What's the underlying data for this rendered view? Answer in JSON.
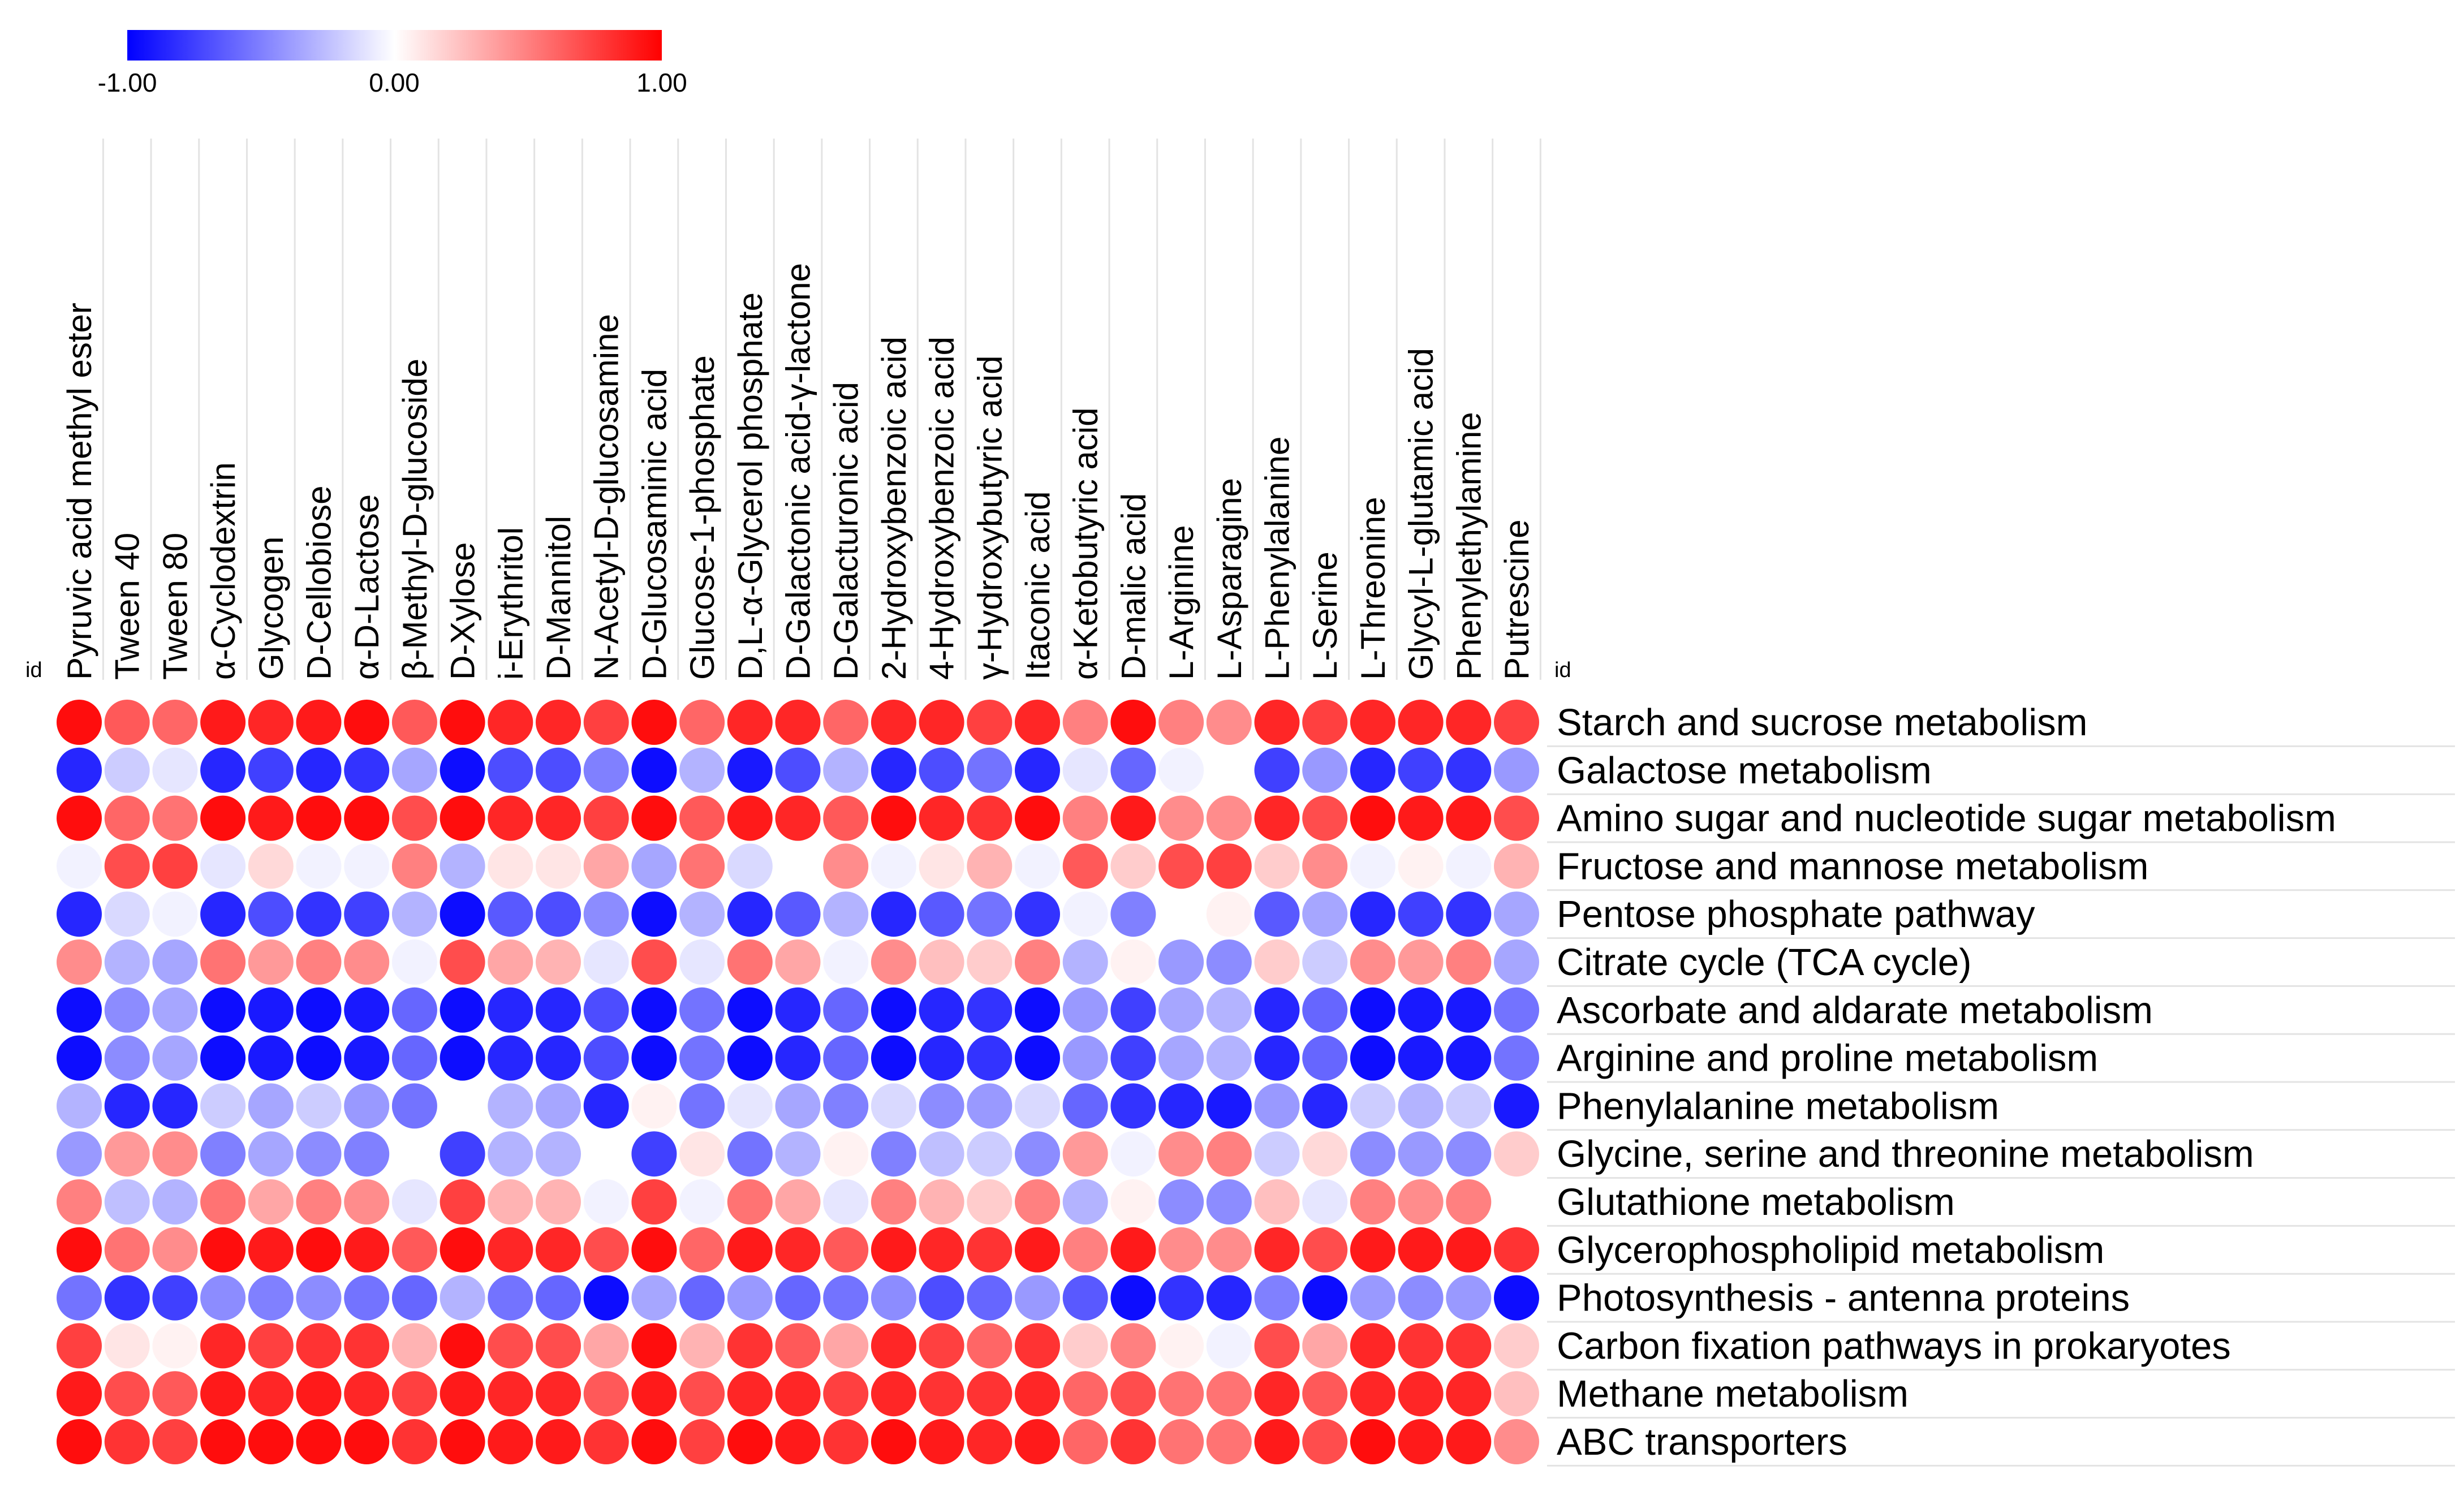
{
  "chart_data": {
    "type": "heatmap",
    "title": "",
    "xlabel": "id",
    "ylabel": "id",
    "colorbar": {
      "min": -1.0,
      "max": 1.0,
      "ticks": [
        "-1.00",
        "0.00",
        "1.00"
      ],
      "colors": {
        "low": "#0000ff",
        "mid": "#ffffff",
        "high": "#ff0000"
      }
    },
    "columns": [
      "Pyruvic acid methyl ester",
      "Tween 40",
      "Tween 80",
      "α-Cyclodextrin",
      "Glycogen",
      "D-Cellobiose",
      "α-D-Lactose",
      "β-Methyl-D-glucoside",
      "D-Xylose",
      "i-Erythritol",
      "D-Mannitol",
      "N-Acetyl-D-glucosamine",
      "D-Glucosaminic acid",
      "Glucose-1-phosphate",
      "D,L-α-Glycerol phosphate",
      "D-Galactonic acid-γ-lactone",
      "D-Galacturonic acid",
      "2-Hydroxybenzoic acid",
      "4-Hydroxybenzoic acid",
      "γ-Hydroxybutyric acid",
      "Itaconic acid",
      "α-Ketobutyric acid",
      "D-malic acid",
      "L-Arginine",
      "L-Asparagine",
      "L-Phenylalanine",
      "L-Serine",
      "L-Threonine",
      "Glycyl-L-glutamic acid",
      "Phenylethylamine",
      "Putrescine"
    ],
    "rows": [
      "Starch and sucrose metabolism",
      "Galactose metabolism",
      "Amino sugar and nucleotide sugar metabolism",
      "Fructose and mannose metabolism",
      "Pentose phosphate pathway",
      "Citrate cycle (TCA cycle)",
      "Ascorbate and aldarate metabolism",
      "Arginine and proline metabolism",
      "Phenylalanine metabolism",
      "Glycine, serine and threonine metabolism",
      "Glutathione metabolism",
      "Glycerophospholipid metabolism",
      "Photosynthesis - antenna proteins",
      "Carbon fixation pathways in prokaryotes",
      "Methane metabolism",
      "ABC transporters"
    ],
    "values": [
      [
        0.95,
        0.65,
        0.6,
        0.9,
        0.85,
        0.9,
        0.95,
        0.65,
        0.95,
        0.85,
        0.85,
        0.75,
        0.95,
        0.6,
        0.85,
        0.85,
        0.6,
        0.85,
        0.85,
        0.75,
        0.85,
        0.5,
        0.95,
        0.5,
        0.45,
        0.85,
        0.75,
        0.85,
        0.85,
        0.85,
        0.75
      ],
      [
        -0.85,
        -0.2,
        -0.1,
        -0.85,
        -0.75,
        -0.85,
        -0.8,
        -0.35,
        -0.95,
        -0.7,
        -0.7,
        -0.5,
        -0.95,
        -0.3,
        -0.9,
        -0.7,
        -0.3,
        -0.85,
        -0.7,
        -0.55,
        -0.85,
        -0.1,
        -0.6,
        -0.05,
        0.0,
        -0.75,
        -0.4,
        -0.85,
        -0.75,
        -0.8,
        -0.4
      ],
      [
        0.95,
        0.6,
        0.55,
        0.95,
        0.9,
        0.95,
        0.95,
        0.7,
        0.95,
        0.85,
        0.85,
        0.75,
        0.95,
        0.65,
        0.9,
        0.85,
        0.65,
        0.95,
        0.85,
        0.8,
        0.95,
        0.5,
        0.9,
        0.45,
        0.45,
        0.85,
        0.7,
        0.95,
        0.9,
        0.9,
        0.7
      ],
      [
        -0.05,
        0.7,
        0.75,
        -0.1,
        0.15,
        -0.05,
        -0.05,
        0.5,
        -0.3,
        0.1,
        0.1,
        0.35,
        -0.35,
        0.55,
        -0.15,
        0.0,
        0.45,
        -0.05,
        0.1,
        0.3,
        -0.05,
        0.65,
        0.2,
        0.7,
        0.75,
        0.2,
        0.45,
        -0.05,
        0.05,
        -0.05,
        0.3
      ],
      [
        -0.85,
        -0.15,
        -0.05,
        -0.85,
        -0.7,
        -0.8,
        -0.75,
        -0.3,
        -0.95,
        -0.65,
        -0.7,
        -0.45,
        -0.95,
        -0.3,
        -0.85,
        -0.65,
        -0.3,
        -0.85,
        -0.65,
        -0.55,
        -0.8,
        -0.05,
        -0.5,
        0.0,
        0.05,
        -0.65,
        -0.35,
        -0.85,
        -0.75,
        -0.8,
        -0.35
      ],
      [
        0.45,
        -0.3,
        -0.35,
        0.55,
        0.4,
        0.5,
        0.45,
        -0.05,
        0.7,
        0.35,
        0.3,
        -0.1,
        0.7,
        -0.1,
        0.55,
        0.35,
        -0.05,
        0.45,
        0.25,
        0.2,
        0.5,
        -0.3,
        0.05,
        -0.4,
        -0.45,
        0.2,
        -0.2,
        0.45,
        0.4,
        0.5,
        -0.35
      ],
      [
        -0.95,
        -0.45,
        -0.35,
        -0.95,
        -0.9,
        -0.95,
        -0.9,
        -0.6,
        -0.95,
        -0.85,
        -0.85,
        -0.7,
        -0.95,
        -0.55,
        -0.95,
        -0.85,
        -0.6,
        -0.95,
        -0.85,
        -0.8,
        -0.95,
        -0.4,
        -0.75,
        -0.35,
        -0.3,
        -0.85,
        -0.6,
        -0.95,
        -0.9,
        -0.9,
        -0.55
      ],
      [
        -0.95,
        -0.45,
        -0.35,
        -0.95,
        -0.9,
        -0.95,
        -0.9,
        -0.6,
        -0.95,
        -0.85,
        -0.85,
        -0.7,
        -0.95,
        -0.55,
        -0.95,
        -0.85,
        -0.6,
        -0.95,
        -0.85,
        -0.8,
        -0.95,
        -0.4,
        -0.75,
        -0.35,
        -0.3,
        -0.85,
        -0.6,
        -0.95,
        -0.9,
        -0.9,
        -0.55
      ],
      [
        -0.3,
        -0.85,
        -0.85,
        -0.2,
        -0.35,
        -0.2,
        -0.4,
        -0.55,
        0.0,
        -0.3,
        -0.35,
        -0.85,
        0.05,
        -0.55,
        -0.1,
        -0.35,
        -0.5,
        -0.15,
        -0.45,
        -0.4,
        -0.15,
        -0.6,
        -0.8,
        -0.85,
        -0.9,
        -0.4,
        -0.85,
        -0.2,
        -0.3,
        -0.2,
        -0.9
      ],
      [
        -0.4,
        0.4,
        0.45,
        -0.5,
        -0.35,
        -0.45,
        -0.5,
        0.0,
        -0.75,
        -0.3,
        -0.3,
        0.0,
        -0.75,
        0.1,
        -0.55,
        -0.3,
        0.05,
        -0.5,
        -0.25,
        -0.2,
        -0.45,
        0.4,
        -0.05,
        0.45,
        0.5,
        -0.2,
        0.15,
        -0.45,
        -0.4,
        -0.45,
        0.2
      ],
      [
        0.5,
        -0.25,
        -0.3,
        0.55,
        0.35,
        0.5,
        0.45,
        -0.1,
        0.75,
        0.3,
        0.3,
        -0.05,
        0.75,
        -0.05,
        0.55,
        0.35,
        -0.1,
        0.5,
        0.3,
        0.2,
        0.5,
        -0.3,
        0.05,
        -0.45,
        -0.45,
        0.25,
        -0.1,
        0.5,
        0.45,
        0.5,
        0.0
      ],
      [
        0.95,
        0.55,
        0.45,
        0.95,
        0.9,
        0.95,
        0.9,
        0.65,
        0.95,
        0.85,
        0.85,
        0.7,
        0.95,
        0.6,
        0.9,
        0.85,
        0.65,
        0.9,
        0.85,
        0.8,
        0.9,
        0.5,
        0.9,
        0.45,
        0.45,
        0.85,
        0.7,
        0.9,
        0.9,
        0.9,
        0.8
      ],
      [
        -0.55,
        -0.8,
        -0.75,
        -0.45,
        -0.5,
        -0.45,
        -0.55,
        -0.6,
        -0.3,
        -0.55,
        -0.6,
        -0.95,
        -0.35,
        -0.6,
        -0.4,
        -0.6,
        -0.55,
        -0.45,
        -0.7,
        -0.6,
        -0.4,
        -0.65,
        -0.95,
        -0.8,
        -0.85,
        -0.5,
        -0.95,
        -0.4,
        -0.45,
        -0.4,
        -0.95
      ],
      [
        0.75,
        0.1,
        0.05,
        0.85,
        0.75,
        0.8,
        0.8,
        0.3,
        0.95,
        0.7,
        0.7,
        0.35,
        0.95,
        0.3,
        0.8,
        0.65,
        0.35,
        0.85,
        0.75,
        0.6,
        0.8,
        0.2,
        0.5,
        0.05,
        -0.05,
        0.7,
        0.35,
        0.85,
        0.8,
        0.8,
        0.2
      ],
      [
        0.9,
        0.7,
        0.65,
        0.9,
        0.85,
        0.9,
        0.85,
        0.75,
        0.9,
        0.85,
        0.85,
        0.65,
        0.9,
        0.7,
        0.85,
        0.85,
        0.75,
        0.85,
        0.8,
        0.8,
        0.85,
        0.6,
        0.7,
        0.55,
        0.55,
        0.85,
        0.65,
        0.85,
        0.85,
        0.85,
        0.25
      ],
      [
        0.95,
        0.8,
        0.75,
        0.95,
        0.95,
        0.95,
        0.95,
        0.8,
        0.95,
        0.9,
        0.9,
        0.8,
        0.95,
        0.75,
        0.95,
        0.9,
        0.8,
        0.95,
        0.9,
        0.85,
        0.9,
        0.6,
        0.8,
        0.55,
        0.55,
        0.9,
        0.7,
        0.95,
        0.9,
        0.9,
        0.45
      ]
    ]
  }
}
